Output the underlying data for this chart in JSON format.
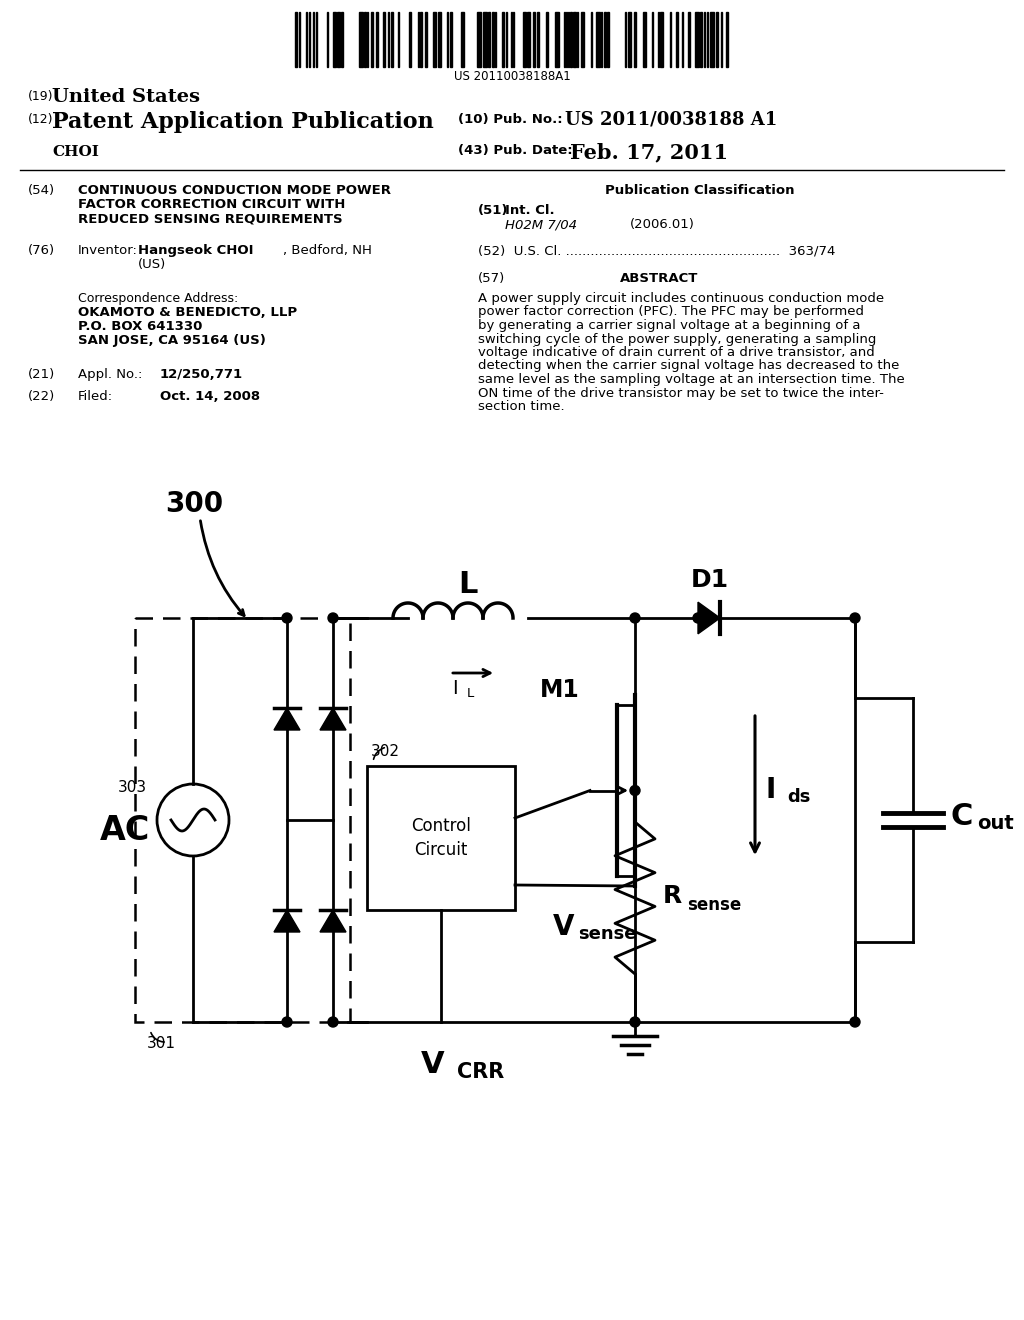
{
  "bg": "#ffffff",
  "barcode_text": "US 20110038188A1",
  "h19_small": "(19)",
  "h19_big": "United States",
  "h12_small": "(12)",
  "h12_big": "Patent Application Publication",
  "pub_no_label": "(10) Pub. No.:",
  "pub_no_val": "US 2011/0038188 A1",
  "author": "CHOI",
  "pub_date_label": "(43) Pub. Date:",
  "pub_date_val": "Feb. 17, 2011",
  "f54_num": "(54)",
  "f54_l1": "CONTINUOUS CONDUCTION MODE POWER",
  "f54_l2": "FACTOR CORRECTION CIRCUIT WITH",
  "f54_l3": "REDUCED SENSING REQUIREMENTS",
  "pub_class": "Publication Classification",
  "f51_num": "(51)",
  "f51_label": "Int. Cl.",
  "f51_val": "H02M 7/04",
  "f51_year": "(2006.01)",
  "f52": "(52)  U.S. Cl. ....................................................  363/74",
  "f57_num": "(57)",
  "abstract_title": "ABSTRACT",
  "abstract_lines": [
    "A power supply circuit includes continuous conduction mode",
    "power factor correction (PFC). The PFC may be performed",
    "by generating a carrier signal voltage at a beginning of a",
    "switching cycle of the power supply, generating a sampling",
    "voltage indicative of drain current of a drive transistor, and",
    "detecting when the carrier signal voltage has decreased to the",
    "same level as the sampling voltage at an intersection time. The",
    "ON time of the drive transistor may be set to twice the inter-",
    "section time."
  ],
  "f76_num": "(76)",
  "f76_label": "Inventor:",
  "inv_bold": "Hangseok CHOI",
  "inv_rest": ", Bedford, NH",
  "inv_country": "(US)",
  "corr_label": "Correspondence Address:",
  "corr_l1": "OKAMOTO & BENEDICTO, LLP",
  "corr_l2": "P.O. BOX 641330",
  "corr_l3": "SAN JOSE, CA 95164 (US)",
  "f21_num": "(21)",
  "f21_label": "Appl. No.:",
  "f21_val": "12/250,771",
  "f22_num": "(22)",
  "f22_label": "Filed:",
  "f22_val": "Oct. 14, 2008",
  "c300": "300",
  "c301": "301",
  "c302": "302",
  "cAC": "AC",
  "c303": "303",
  "cCtrl1": "Control",
  "cCtrl2": "Circuit",
  "cM1": "M1",
  "cL": "L",
  "cD1": "D1",
  "cIL": "I",
  "cILsub": "L",
  "cIds": "I",
  "cIdssub": "ds",
  "cCout": "C",
  "cCoutsub": "out",
  "cVsense": "V",
  "cVsensesub": "sense",
  "cRsense": "R",
  "cRsensesub": "sense",
  "cVCRR": "V",
  "cVCRRsub": "CRR"
}
